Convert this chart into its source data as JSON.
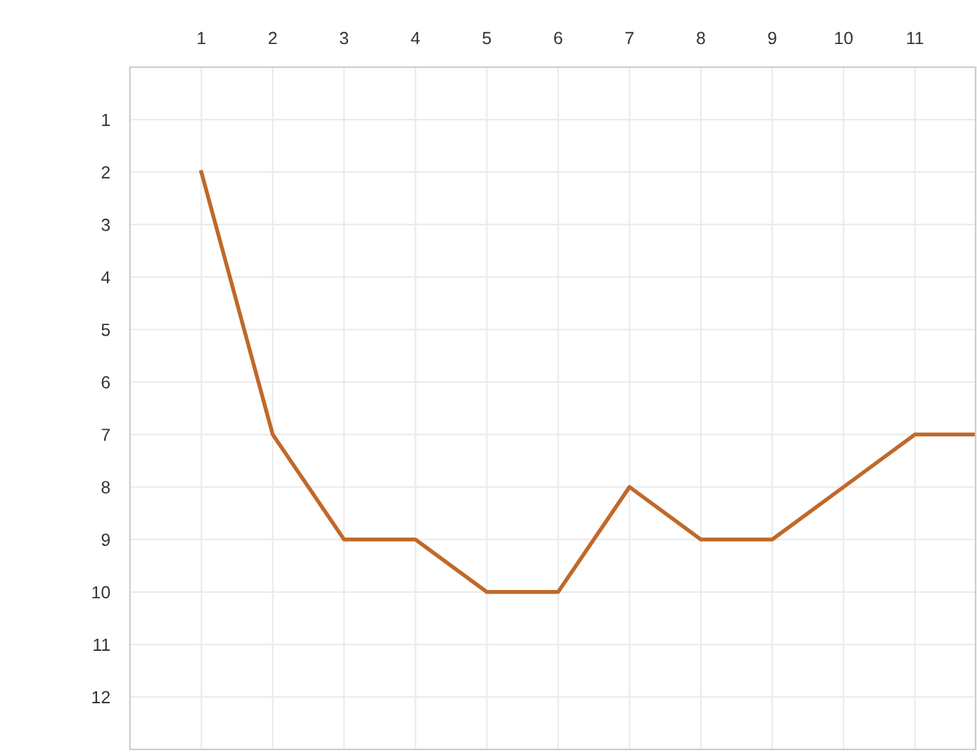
{
  "chart_data": {
    "type": "line",
    "x": [
      1,
      2,
      3,
      4,
      5,
      6,
      7,
      8,
      9,
      10,
      11,
      11.85
    ],
    "series": [
      {
        "color": "#c0692a",
        "values": [
          2,
          7,
          9,
          9,
          10,
          10,
          8,
          9,
          9,
          8,
          7,
          7
        ]
      }
    ],
    "xlim": [
      0,
      11.85
    ],
    "xticks": [
      1,
      2,
      3,
      4,
      5,
      6,
      7,
      8,
      9,
      10,
      11
    ],
    "ylim": [
      13,
      0
    ],
    "yticks": [
      1,
      2,
      3,
      4,
      5,
      6,
      7,
      8,
      9,
      10,
      11,
      12
    ],
    "grid": true,
    "legend": false,
    "marker": "none",
    "line_style": "solid"
  }
}
